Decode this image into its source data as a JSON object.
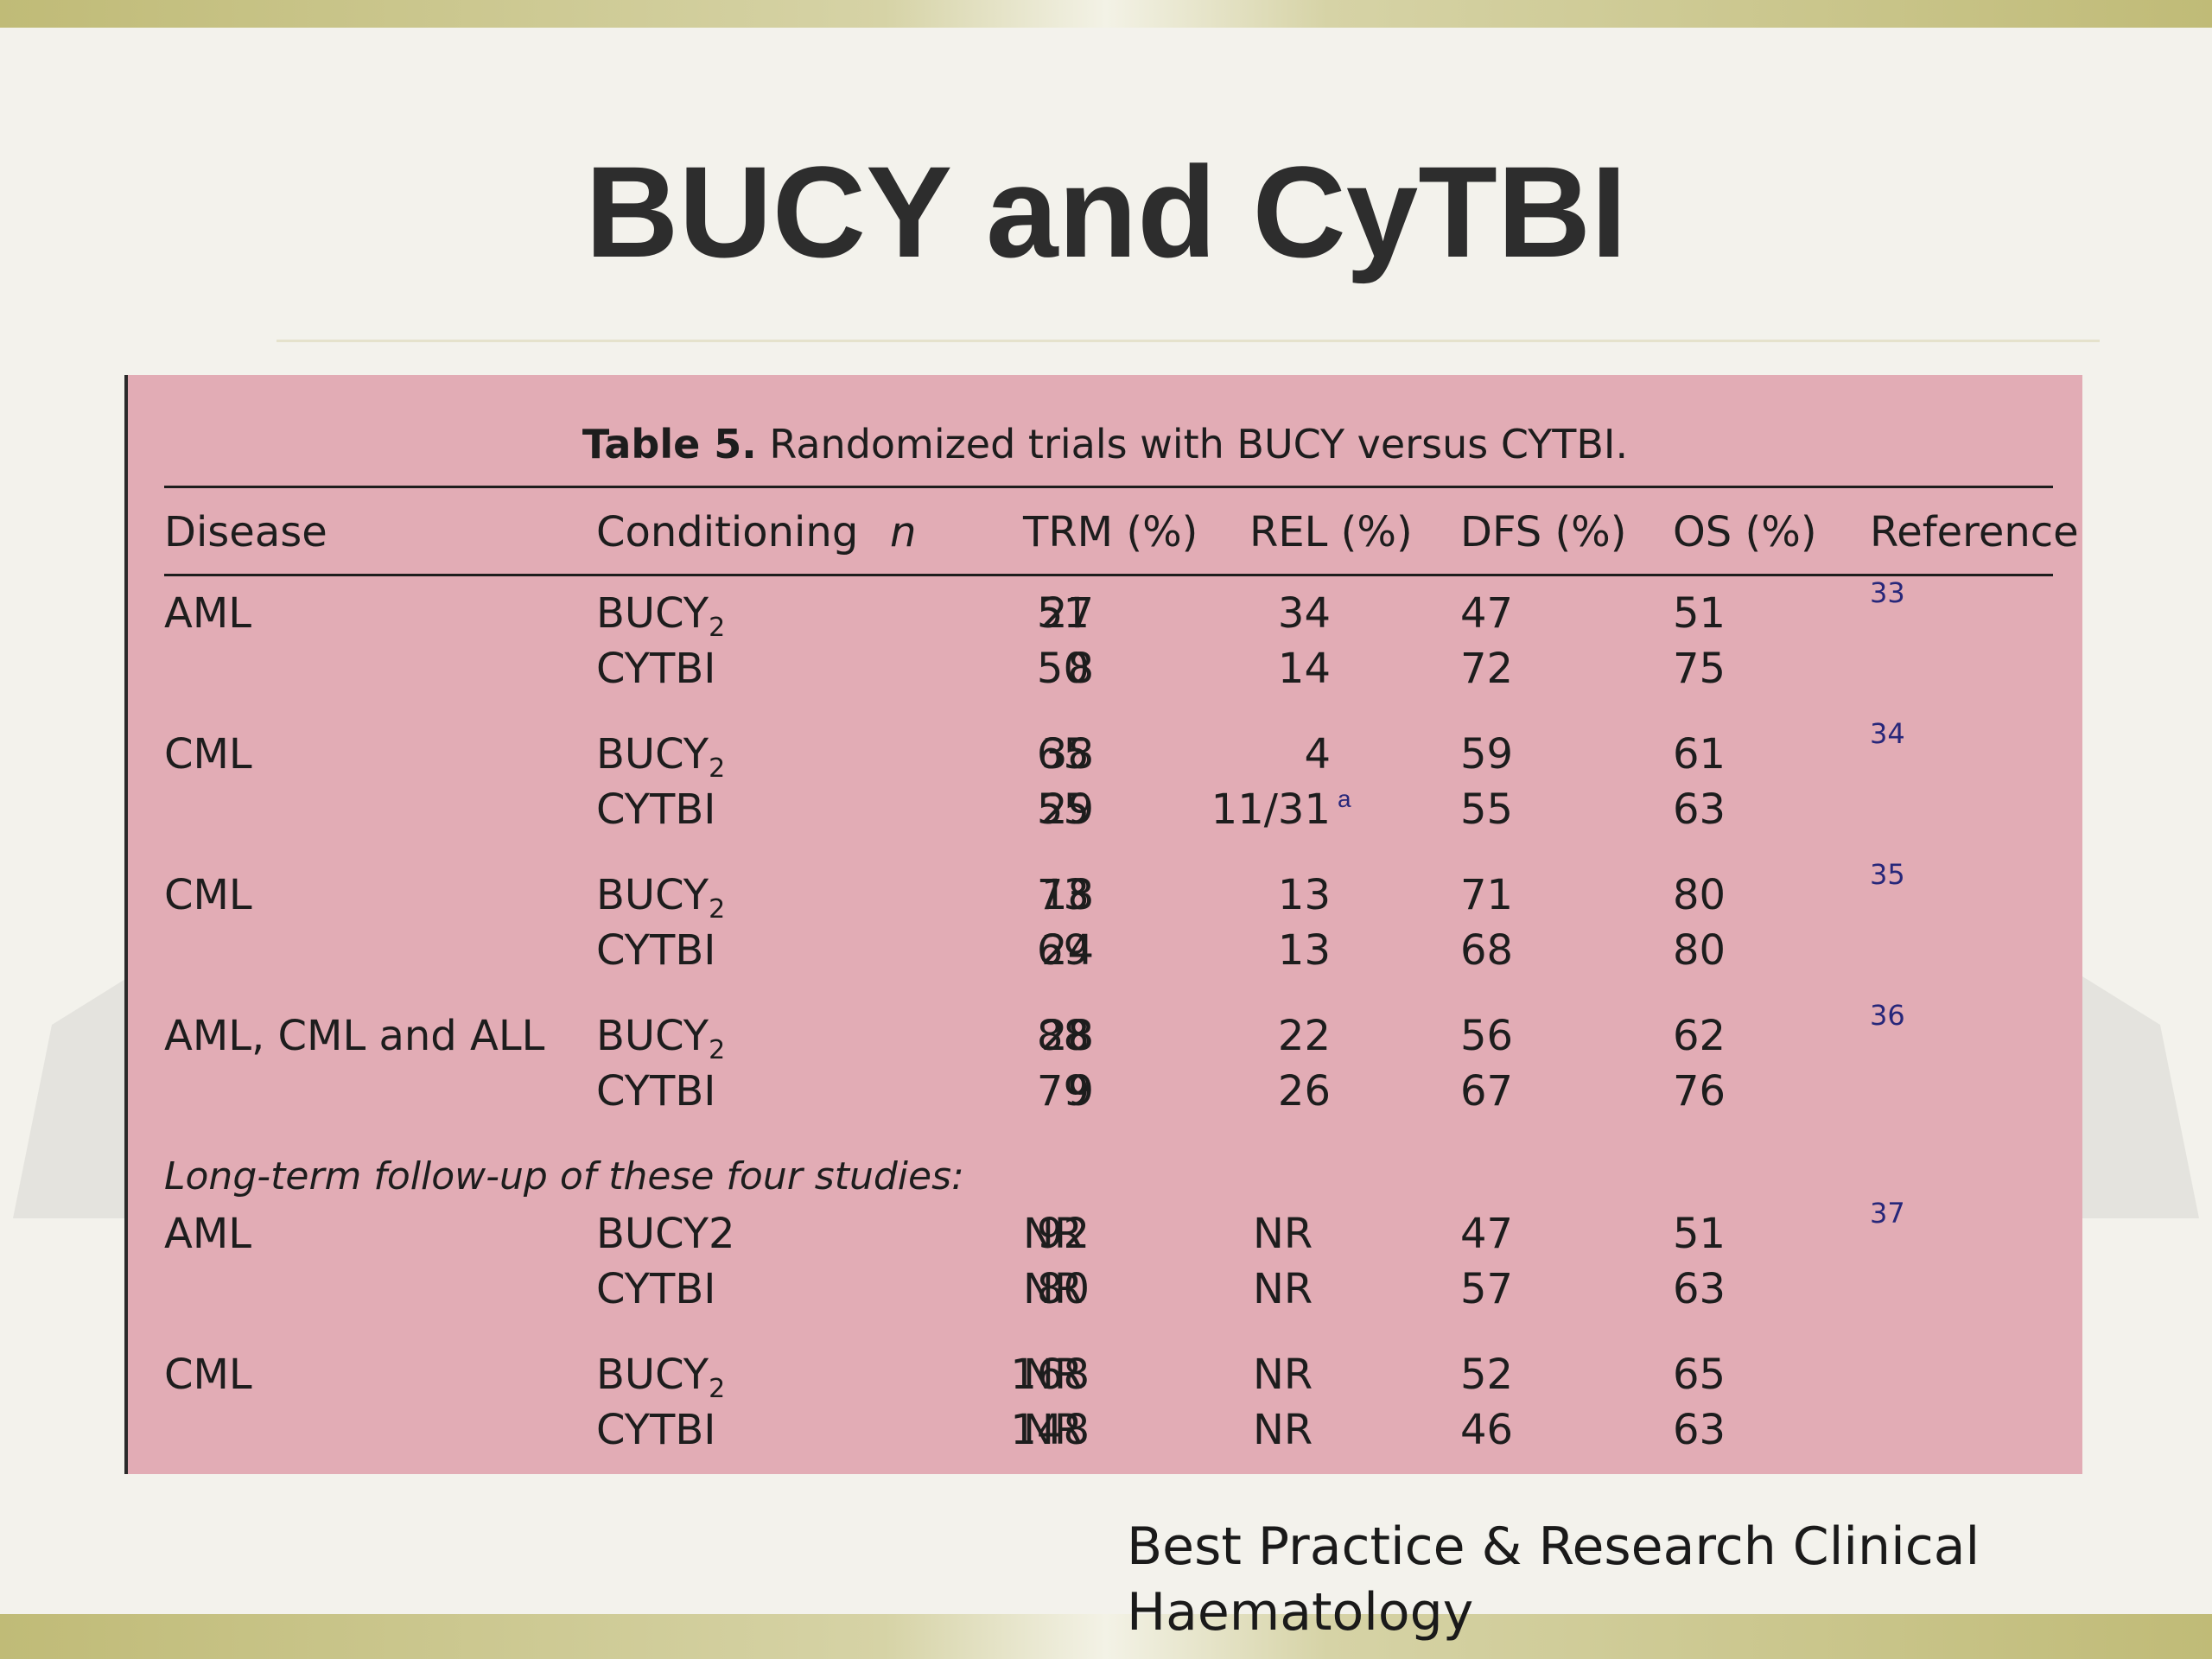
{
  "slide": {
    "title": "BUCY and CyTBI",
    "source": "Best Practice & Research Clinical Haematology"
  },
  "table": {
    "caption_label": "Table 5.",
    "caption_text": "Randomized trials with BUCY versus CYTBI.",
    "headers": [
      "Disease",
      "Conditioning",
      "n",
      "TRM (%)",
      "REL (%)",
      "DFS (%)",
      "OS (%)",
      "Reference"
    ],
    "groups": [
      {
        "disease": "AML",
        "ref": "33",
        "rows": [
          {
            "cond": "BUCY",
            "sub": "2",
            "n": "51",
            "trm": "27",
            "rel": "34",
            "dfs": "47",
            "os": "51"
          },
          {
            "cond": "CYTBI",
            "n": "50",
            "trm": "8",
            "rel": "14",
            "dfs": "72",
            "os": "75"
          }
        ]
      },
      {
        "disease": "CML",
        "ref": "34",
        "rows": [
          {
            "cond": "BUCY",
            "sub": "2",
            "n": "65",
            "trm": "38",
            "rel": "4",
            "dfs": "59",
            "os": "61"
          },
          {
            "cond": "CYTBI",
            "n": "55",
            "trm": "29",
            "rel": "11/31",
            "rel_note": "a",
            "dfs": "55",
            "os": "63"
          }
        ]
      },
      {
        "disease": "CML",
        "ref": "35",
        "rows": [
          {
            "cond": "BUCY",
            "sub": "2",
            "n": "73",
            "trm": "18",
            "rel": "13",
            "dfs": "71",
            "os": "80"
          },
          {
            "cond": "CYTBI",
            "n": "69",
            "trm": "24",
            "rel": "13",
            "dfs": "68",
            "os": "80"
          }
        ]
      },
      {
        "disease": "AML, CML and ALL",
        "ref": "36",
        "rows": [
          {
            "cond": "BUCY",
            "sub": "2",
            "n": "88",
            "trm": "28",
            "rel": "22",
            "dfs": "56",
            "os": "62"
          },
          {
            "cond": "CYTBI",
            "n": "79",
            "trm": "9",
            "rel": "26",
            "dfs": "67",
            "os": "76"
          }
        ]
      }
    ],
    "followup_label": "Long-term follow-up of these four studies:",
    "followup_groups": [
      {
        "disease": "AML",
        "ref": "37",
        "rows": [
          {
            "cond": "BUCY2",
            "n": "92",
            "trm": "NR",
            "rel": "NR",
            "dfs": "47",
            "os": "51"
          },
          {
            "cond": "CYTBI",
            "n": "80",
            "trm": "NR",
            "rel": "NR",
            "dfs": "57",
            "os": "63"
          }
        ]
      },
      {
        "disease": "CML",
        "ref": "",
        "rows": [
          {
            "cond": "BUCY",
            "sub": "2",
            "n": "168",
            "trm": "NR",
            "rel": "NR",
            "dfs": "52",
            "os": "65"
          },
          {
            "cond": "CYTBI",
            "n": "148",
            "trm": "NR",
            "rel": "NR",
            "dfs": "46",
            "os": "63"
          }
        ]
      }
    ]
  }
}
